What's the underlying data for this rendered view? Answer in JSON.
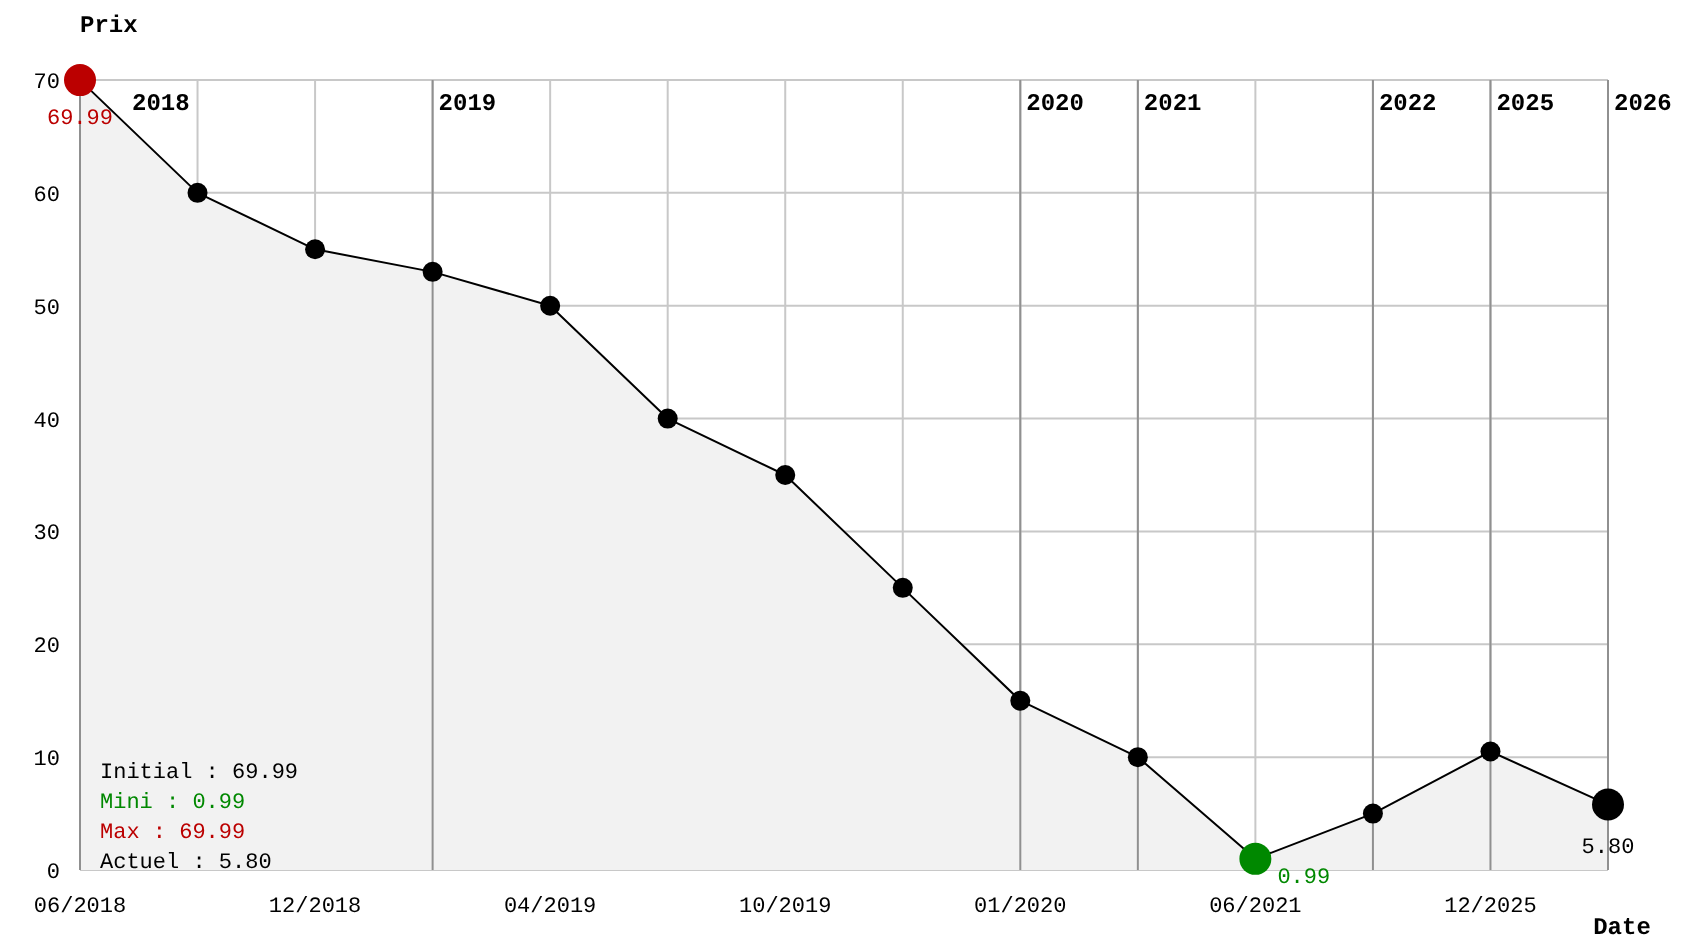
{
  "chart_data": {
    "type": "area",
    "ylabel": "Prix",
    "xlabel": "Date",
    "categories": [
      "06/2018",
      null,
      "12/2018",
      null,
      "04/2019",
      null,
      "10/2019",
      null,
      "01/2020",
      null,
      "06/2021",
      null,
      "12/2025",
      null
    ],
    "series": [
      {
        "color": "#000000",
        "values": [
          69.99,
          60,
          55,
          53,
          50,
          40,
          35,
          25,
          15,
          10,
          0.99,
          5,
          10.5,
          5.8
        ],
        "colors": [
          "#bb0000",
          "#000000",
          "#000000",
          "#000000",
          "#000000",
          "#000000",
          "#000000",
          "#000000",
          "#000000",
          "#000000",
          "#008800",
          "#000000",
          "#000000",
          "#000000"
        ],
        "value_labels": [
          "69.99",
          null,
          null,
          null,
          null,
          null,
          null,
          null,
          null,
          null,
          "0.99",
          null,
          null,
          "5.80"
        ]
      }
    ],
    "ylim": [
      0,
      70
    ],
    "yticks": [
      0,
      10,
      20,
      30,
      40,
      50,
      60,
      70
    ],
    "grid": true,
    "marker": "circle",
    "annotations": [
      "Initial : 69.99",
      "Mini : 0.99",
      "Max : 69.99",
      "Actuel : 5.80",
      "2018",
      "2019",
      "2020",
      "2021",
      "2022",
      "2025",
      "2026"
    ]
  }
}
